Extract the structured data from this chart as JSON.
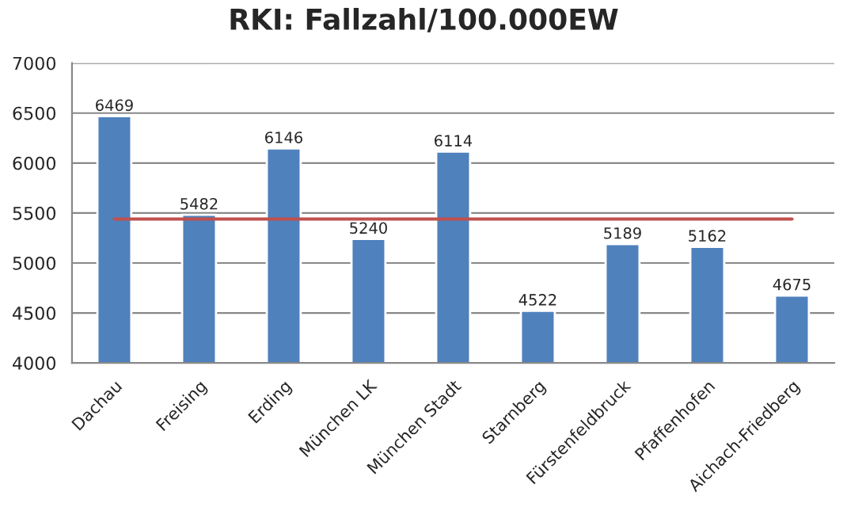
{
  "chart_data": {
    "type": "bar",
    "title": "RKI: Fallzahl/100.000EW",
    "categories": [
      "Dachau",
      "Freising",
      "Erding",
      "München LK",
      "München Stadt",
      "Starnberg",
      "Fürstenfeldbruck",
      "Pfaffenhofen",
      "Aichach-Friedberg"
    ],
    "series": [
      {
        "color": "#4f81bd",
        "values": [
          6469,
          5482,
          6146,
          5240,
          6114,
          4522,
          5189,
          5162,
          4675
        ],
        "data_labels": true
      },
      {
        "type": "line",
        "color": "#c0504d",
        "values": [
          5440,
          5440,
          5440,
          5440,
          5440,
          5440,
          5440,
          5440,
          5440
        ]
      }
    ],
    "ylim": [
      4000,
      7000
    ],
    "yticks": [
      4000,
      4500,
      5000,
      5500,
      6000,
      6500,
      7000
    ],
    "grid": "y",
    "legend": false
  }
}
